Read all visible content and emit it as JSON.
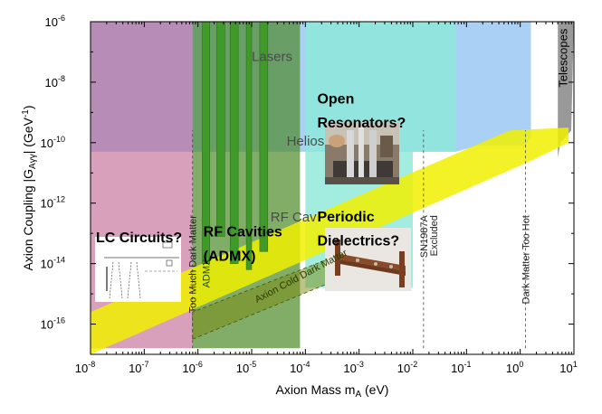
{
  "chart_data": {
    "type": "area",
    "title": "",
    "xlabel": "Axion Mass m",
    "xlabel_sub": "A",
    "xlabel_unit": " (eV)",
    "ylabel": "Axion Coupling |G",
    "ylabel_sub": "Aγγ",
    "ylabel_mid": "| (GeV",
    "ylabel_sup": "-1",
    "ylabel_end": ")",
    "x_scale": "log",
    "y_scale": "log",
    "xlim_exp": [
      -8,
      1
    ],
    "ylim_exp": [
      -17,
      -6
    ],
    "x_ticks_exp": [
      -8,
      -7,
      -6,
      -5,
      -4,
      -3,
      -2,
      -1,
      0,
      1
    ],
    "y_ticks_exp": [
      -16,
      -14,
      -12,
      -10,
      -8,
      -6
    ],
    "tick_base": "10",
    "grid": false,
    "regions": [
      {
        "name": "Lasers",
        "color": "#b2e08a",
        "polygon": [
          [
            -5.5,
            -7.0
          ],
          [
            -1.8,
            -7.0
          ],
          [
            -1.5,
            -6.0
          ],
          [
            -5.5,
            -6.0
          ]
        ]
      },
      {
        "name": "Telescopes",
        "color": "#999999",
        "polygon": [
          [
            0.7,
            -10.5
          ],
          [
            0.75,
            -10.0
          ],
          [
            0.95,
            -9.6
          ],
          [
            1.0,
            -6.0
          ],
          [
            0.7,
            -6.0
          ]
        ]
      },
      {
        "name": "",
        "color": "#ffd28a",
        "polygon": [
          [
            -8,
            -7.0
          ],
          [
            -5.5,
            -7.0
          ],
          [
            -5.5,
            -6.0
          ],
          [
            -8,
            -6.0
          ]
        ]
      },
      {
        "name": "Helios",
        "color": "#aad0f5",
        "polygon": [
          [
            -8,
            -10.3
          ],
          [
            -3.5,
            -10.3
          ],
          [
            -2.0,
            -10.3
          ],
          [
            -1.2,
            -10.3
          ],
          [
            -0.8,
            -10.1
          ],
          [
            0.1,
            -10.1
          ],
          [
            0.2,
            -9.8
          ],
          [
            0.2,
            -6.0
          ],
          [
            -8,
            -6.0
          ]
        ]
      },
      {
        "name": "Open Resonators",
        "color": "#8ce8d8",
        "opacity": 0.8,
        "polygon": [
          [
            -4.0,
            -14.8
          ],
          [
            -2.0,
            -14.8
          ],
          [
            -2.0,
            -10.3
          ],
          [
            -1.2,
            -10.3
          ],
          [
            -1.2,
            -6.0
          ],
          [
            -4.0,
            -6.0
          ]
        ]
      },
      {
        "name": "LC Circuits",
        "color": "#c06090",
        "opacity": 0.6,
        "polygon": [
          [
            -8,
            -16.8
          ],
          [
            -6.1,
            -16.8
          ],
          [
            -6.1,
            -6.0
          ],
          [
            -8,
            -6.0
          ]
        ]
      },
      {
        "name": "RF Cavities",
        "color": "#4d8a2a",
        "opacity": 0.7,
        "polygon": [
          [
            -6.1,
            -16.8
          ],
          [
            -4.1,
            -16.8
          ],
          [
            -4.1,
            -6.0
          ],
          [
            -6.1,
            -6.0
          ]
        ]
      }
    ],
    "bands": [
      {
        "name": "",
        "color": "#f0f000",
        "polygon": [
          [
            -8,
            -17.0
          ],
          [
            0.2,
            -10.6
          ],
          [
            0.9,
            -10.0
          ],
          [
            0.9,
            -9.5
          ],
          [
            -0.2,
            -9.6
          ],
          [
            -8,
            -15.6
          ]
        ]
      },
      {
        "name": "Axion Cold Dark Matter",
        "color": "#7a8a10",
        "polygon": [
          [
            -6.1,
            -16.5
          ],
          [
            -3.5,
            -14.6
          ],
          [
            -3.5,
            -13.8
          ],
          [
            -6.1,
            -15.6
          ]
        ]
      }
    ],
    "admx_bars": [
      {
        "x": [
          -5.92,
          -5.78
        ],
        "y_bottom": -14.0
      },
      {
        "x": [
          -5.65,
          -5.5
        ],
        "y_bottom": -13.1
      },
      {
        "x": [
          -5.4,
          -5.25
        ],
        "y_bottom": -14.0
      },
      {
        "x": [
          -5.1,
          -5.0
        ],
        "y_bottom": -14.2
      },
      {
        "x": [
          -4.85,
          -4.7
        ],
        "y_bottom": -13.6
      }
    ],
    "dashed_lines": [
      {
        "label": "Too Much Dark Matter",
        "x": -6.1
      },
      {
        "label": "SN1987A Excluded",
        "x": -1.8
      },
      {
        "label": "Dark Matter Too Hot",
        "x": 0.1
      }
    ],
    "region_labels": [
      {
        "text": "Lasers",
        "x": -5.0,
        "y": -7.3
      },
      {
        "text": "Helios",
        "x": -4.35,
        "y": -10.1
      },
      {
        "text": "RF Cav",
        "x": -4.65,
        "y": -12.6
      }
    ],
    "vertical_labels": [
      {
        "text": "ADMX",
        "x": -5.78,
        "y": -14.8
      },
      {
        "text": "Telescopes",
        "x": 0.87,
        "y": -7.2
      }
    ],
    "band_label": {
      "text": "Axion Cold Dark Matter",
      "x": -4.9,
      "y": -15.3
    },
    "annotations": [
      {
        "text": "LC Circuits?",
        "x": -8.0,
        "y": -13.3
      },
      {
        "text": "RF Cavities",
        "x": -6.0,
        "y": -13.1
      },
      {
        "text": "(ADMX)",
        "x": -6.0,
        "y": -13.9
      },
      {
        "text": "Open",
        "x": -3.88,
        "y": -8.7
      },
      {
        "text": "Resonators?",
        "x": -3.88,
        "y": -9.5
      },
      {
        "text": "Periodic",
        "x": -3.88,
        "y": -12.6
      },
      {
        "text": "Dielectrics?",
        "x": -3.88,
        "y": -13.4
      }
    ]
  }
}
